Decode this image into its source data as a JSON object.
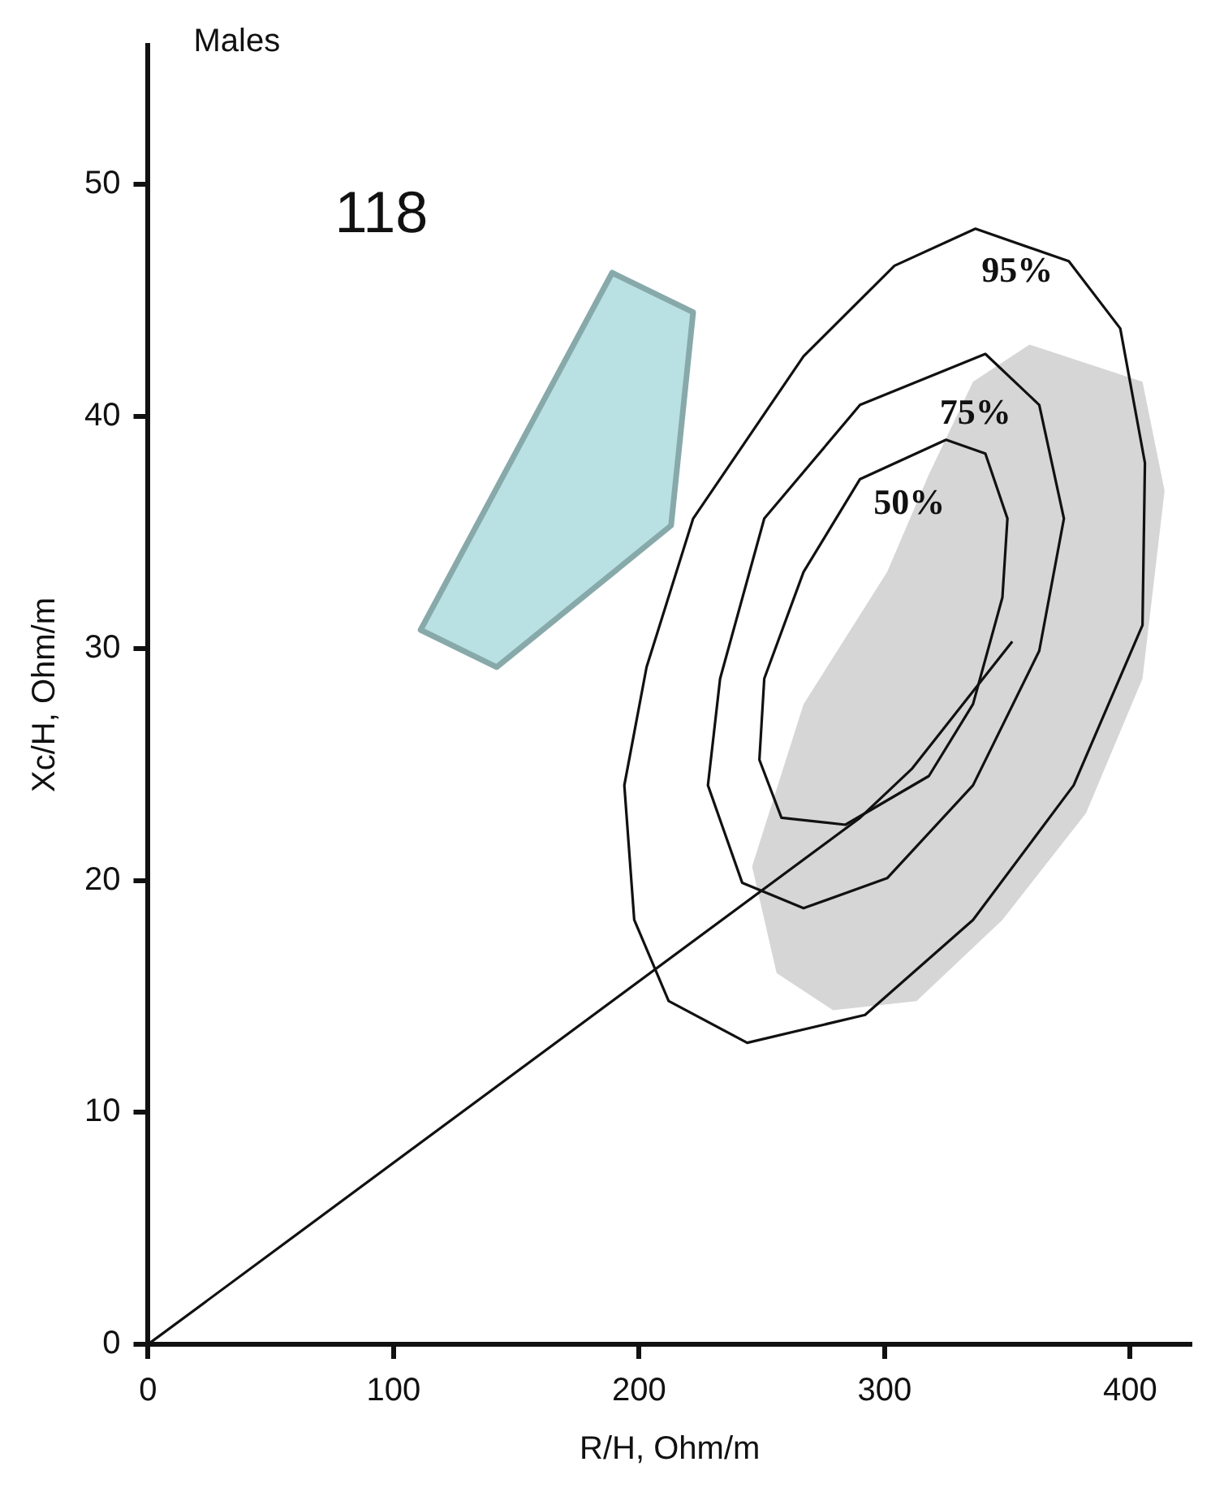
{
  "chart_data": {
    "type": "line",
    "title": "Males",
    "xlabel": "R/H, Ohm/m",
    "ylabel": "Xc/H, Ohm/m",
    "xlim": [
      0,
      425
    ],
    "ylim": [
      0,
      56
    ],
    "xticks": [
      0,
      100,
      200,
      300,
      400
    ],
    "yticks": [
      0,
      10,
      20,
      30,
      40,
      50
    ],
    "grid": false,
    "legend": false,
    "marker": "none",
    "line_style": "solid",
    "annotations": [
      "118",
      "95%",
      "75%",
      "50%"
    ],
    "series": [
      {
        "color": "#111111",
        "x": [
          0,
          290,
          311,
          352
        ],
        "values": [
          0,
          22.7,
          24.8,
          30.3
        ]
      }
    ]
  }
}
